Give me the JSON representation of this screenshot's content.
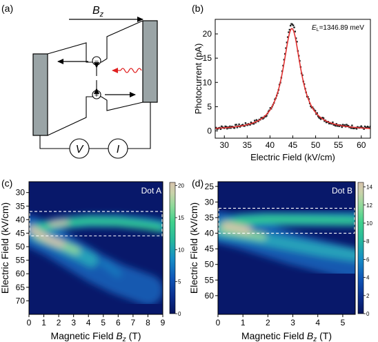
{
  "panels": {
    "a": {
      "label": "(a)",
      "field_label": "B",
      "field_sub": "z",
      "voltmeter": "V",
      "ammeter": "I",
      "minus": "−",
      "plus": "+"
    },
    "b": {
      "label": "(b)"
    },
    "c": {
      "label": "(c)"
    },
    "d": {
      "label": "(d)"
    }
  },
  "chart_data": [
    {
      "panel": "b",
      "type": "line",
      "title": "",
      "xlabel": "Electric Field (kV/cm)",
      "ylabel": "Photocurrent (pA)",
      "xlim": [
        28,
        62
      ],
      "ylim": [
        -1.5,
        23
      ],
      "xticks": [
        30,
        35,
        40,
        45,
        50,
        55,
        60
      ],
      "yticks": [
        0,
        5,
        10,
        15,
        20
      ],
      "annotation": {
        "prefix": "E",
        "sub": "L",
        "text": "=1346.89 meV"
      },
      "series": [
        {
          "kind": "scatter",
          "color": "#222222",
          "center": 44.8,
          "amplitude": 22.0,
          "hwhm": 2.3,
          "baseline": 0.2,
          "x_range": [
            28,
            62
          ],
          "points": 170
        },
        {
          "kind": "fit",
          "color": "#e03030",
          "center": 44.8,
          "amplitude": 21.0,
          "hwhm": 2.4,
          "baseline": 0.1
        }
      ]
    },
    {
      "panel": "c",
      "type": "heatmap",
      "title": "",
      "label": "Dot A",
      "xlabel": "Magnetic Field",
      "xlabel_var": "B",
      "xlabel_sub": "z",
      "xlabel_unit": "(T)",
      "ylabel": "Electric Field (kV/cm)",
      "xlim": [
        0,
        9
      ],
      "ylim": [
        26,
        75
      ],
      "xticks": [
        0,
        1,
        2,
        3,
        4,
        5,
        6,
        7,
        8,
        9
      ],
      "yticks": [
        30,
        35,
        40,
        45,
        50,
        55,
        60,
        65,
        70
      ],
      "colorbar": {
        "min": 0,
        "max": 20.5,
        "ticks": [
          0,
          5,
          10,
          15,
          20
        ]
      },
      "highlight_box": {
        "x": [
          0,
          9
        ],
        "y": [
          37,
          46
        ]
      }
    },
    {
      "panel": "d",
      "type": "heatmap",
      "title": "",
      "label": "Dot B",
      "xlabel": "Magnetic Field",
      "xlabel_var": "B",
      "xlabel_sub": "z",
      "xlabel_unit": "(T)",
      "ylabel": "Electric Field (kV/cm)",
      "xlim": [
        0,
        5.5
      ],
      "ylim": [
        23.5,
        66
      ],
      "xticks": [
        0,
        1,
        2,
        3,
        4,
        5
      ],
      "yticks": [
        25,
        30,
        35,
        40,
        45,
        50,
        55,
        60
      ],
      "colorbar": {
        "min": 0,
        "max": 14.5,
        "ticks": [
          0,
          2,
          4,
          6,
          8,
          10,
          12,
          14
        ]
      },
      "highlight_box": {
        "x": [
          0,
          5.5
        ],
        "y": [
          32,
          40
        ]
      }
    }
  ]
}
